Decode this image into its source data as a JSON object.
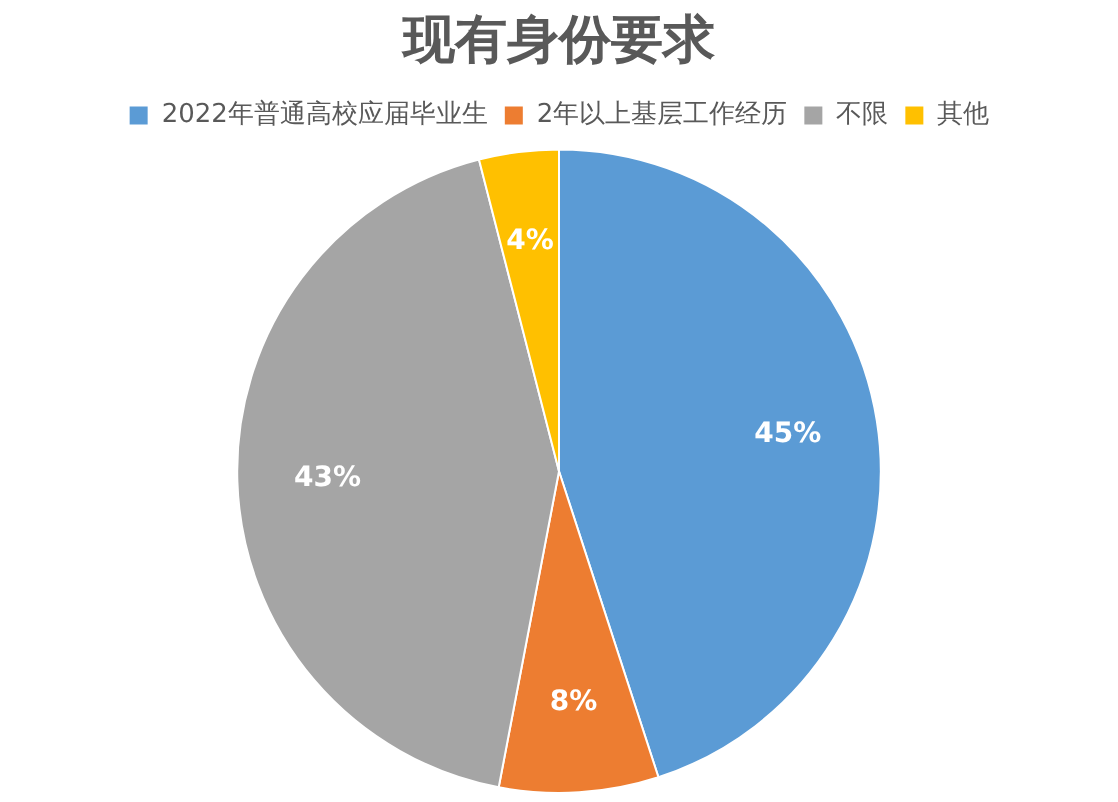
{
  "chart_data": {
    "type": "pie",
    "title": "现有身份要求",
    "categories": [
      "2022年普通高校应届毕业生",
      "2年以上基层工作经历",
      "不限",
      "其他"
    ],
    "values": [
      45,
      8,
      43,
      4
    ],
    "colors": [
      "#5b9bd5",
      "#ed7d31",
      "#a5a5a5",
      "#ffc000"
    ],
    "value_labels": [
      "45%",
      "8%",
      "43%",
      "4%"
    ],
    "legend": "top"
  }
}
